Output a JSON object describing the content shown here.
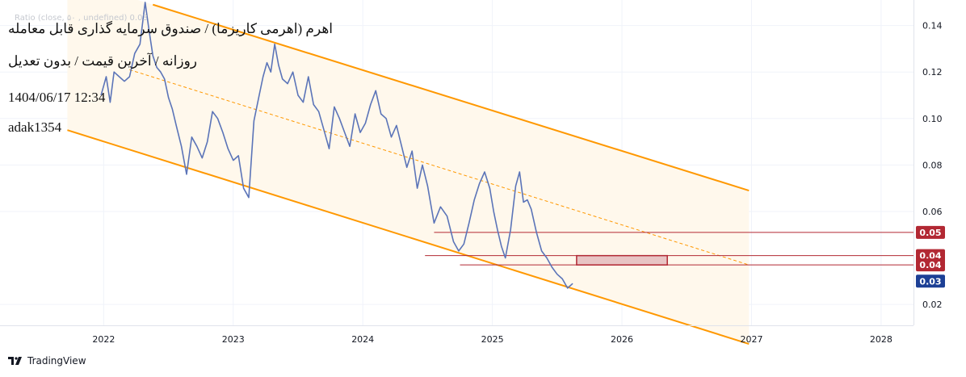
{
  "header": {
    "title": "اهرم (اهرمی کاریزما) / صندوق سرمایه گذاری قابل معامله",
    "subtitle": "روزانه / آخرین قیمت / بدون تعدیل",
    "datetime": "1404/06/17 12:34",
    "author": "adak1354",
    "legend": "Ratio (close, ۵۰ , undefined)  0.03"
  },
  "footer": {
    "brand": "TradingView",
    "logo_icon": "tradingview-logo-icon"
  },
  "colors": {
    "series": "#5b74b8",
    "channel": "#ff9800",
    "channel_fill": "#fff8ec",
    "level_line": "#b22833",
    "tag_red": "#b22833",
    "tag_blue": "#1c3f95",
    "box_fill": "#e8c4c4",
    "grid": "#f0f3fa"
  },
  "chart_data": {
    "type": "line",
    "xaxis": {
      "ticks": [
        "2022",
        "2023",
        "2024",
        "2025",
        "2026",
        "2027",
        "2028"
      ],
      "xlim": [
        2021.2,
        2028.25
      ]
    },
    "yaxis": {
      "ticks": [
        "0.14",
        "0.12",
        "0.10",
        "0.08",
        "0.06",
        "0.02"
      ],
      "ylim": [
        0.011,
        0.151
      ]
    },
    "series": [
      {
        "x": [
          2021.98,
          2022.02,
          2022.05,
          2022.08,
          2022.12,
          2022.16,
          2022.2,
          2022.24,
          2022.28,
          2022.32,
          2022.35,
          2022.38,
          2022.41,
          2022.44,
          2022.47,
          2022.5,
          2022.53,
          2022.56,
          2022.6,
          2022.64,
          2022.68,
          2022.72,
          2022.76,
          2022.8,
          2022.84,
          2022.88,
          2022.92,
          2022.96,
          2023.0,
          2023.04,
          2023.08,
          2023.12,
          2023.16,
          2023.2,
          2023.23,
          2023.26,
          2023.29,
          2023.32,
          2023.35,
          2023.38,
          2023.42,
          2023.46,
          2023.5,
          2023.54,
          2023.58,
          2023.62,
          2023.66,
          2023.7,
          2023.74,
          2023.78,
          2023.82,
          2023.86,
          2023.9,
          2023.94,
          2023.98,
          2024.02,
          2024.06,
          2024.1,
          2024.14,
          2024.18,
          2024.22,
          2024.26,
          2024.3,
          2024.34,
          2024.38,
          2024.42,
          2024.46,
          2024.5,
          2024.55,
          2024.6,
          2024.65,
          2024.7,
          2024.74,
          2024.78,
          2024.82,
          2024.86,
          2024.9,
          2024.94,
          2024.98,
          2025.01,
          2025.04,
          2025.07,
          2025.1,
          2025.14,
          2025.18,
          2025.21,
          2025.24,
          2025.27,
          2025.3,
          2025.34,
          2025.38,
          2025.42,
          2025.46,
          2025.5,
          2025.54,
          2025.58,
          2025.62
        ],
        "values": [
          0.11,
          0.118,
          0.107,
          0.12,
          0.118,
          0.116,
          0.118,
          0.128,
          0.132,
          0.15,
          0.138,
          0.127,
          0.122,
          0.12,
          0.117,
          0.109,
          0.104,
          0.097,
          0.088,
          0.076,
          0.092,
          0.088,
          0.083,
          0.09,
          0.103,
          0.1,
          0.094,
          0.087,
          0.082,
          0.084,
          0.07,
          0.066,
          0.099,
          0.11,
          0.118,
          0.124,
          0.12,
          0.132,
          0.123,
          0.117,
          0.115,
          0.12,
          0.11,
          0.107,
          0.118,
          0.106,
          0.103,
          0.095,
          0.087,
          0.105,
          0.1,
          0.094,
          0.088,
          0.102,
          0.094,
          0.098,
          0.106,
          0.112,
          0.102,
          0.1,
          0.092,
          0.097,
          0.088,
          0.079,
          0.086,
          0.07,
          0.08,
          0.071,
          0.055,
          0.062,
          0.058,
          0.047,
          0.043,
          0.046,
          0.055,
          0.065,
          0.072,
          0.077,
          0.07,
          0.06,
          0.052,
          0.045,
          0.04,
          0.052,
          0.071,
          0.077,
          0.064,
          0.065,
          0.061,
          0.051,
          0.043,
          0.04,
          0.036,
          0.033,
          0.031,
          0.027,
          0.029
        ]
      }
    ],
    "channel": {
      "upper": [
        [
          2022.38,
          0.149
        ],
        [
          2026.98,
          0.069
        ]
      ],
      "lower": [
        [
          2021.72,
          0.095
        ],
        [
          2026.98,
          0.003
        ]
      ],
      "mid_dashed": [
        [
          2022.2,
          0.121
        ],
        [
          2026.98,
          0.037
        ]
      ],
      "fill_range": [
        2021.72,
        2026.98
      ]
    },
    "levels": [
      {
        "value": 0.051,
        "x_start": 2024.55,
        "label": "0.05",
        "tag": "red"
      },
      {
        "value": 0.041,
        "x_start": 2024.48,
        "label": "0.04",
        "tag": "red"
      },
      {
        "value": 0.037,
        "x_start": 2024.75,
        "label": "0.04",
        "tag": "red"
      }
    ],
    "box": {
      "x": [
        2025.65,
        2026.35
      ],
      "y": [
        0.037,
        0.041
      ]
    },
    "last_value": {
      "value": 0.03,
      "label": "0.03",
      "tag": "blue"
    }
  }
}
